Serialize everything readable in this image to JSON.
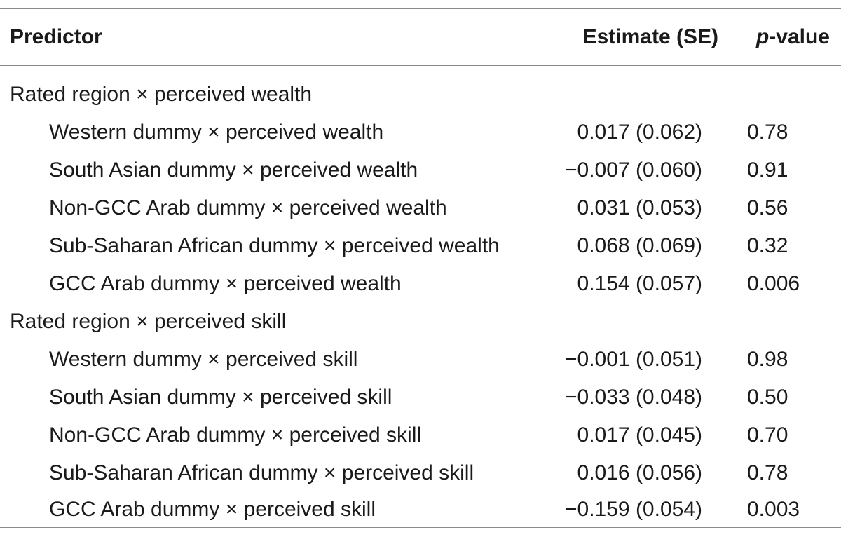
{
  "header": {
    "predictor": "Predictor",
    "estimate": "Estimate (SE)",
    "p_italic": "p",
    "p_rest": "-value"
  },
  "groups": [
    {
      "label": "Rated region × perceived wealth",
      "rows": [
        {
          "predictor": "Western dummy × perceived wealth",
          "estimate": "0.017 (0.062)",
          "p": "0.78"
        },
        {
          "predictor": "South Asian dummy × perceived wealth",
          "estimate": "−0.007 (0.060)",
          "p": "0.91"
        },
        {
          "predictor": "Non-GCC Arab dummy × perceived wealth",
          "estimate": "0.031 (0.053)",
          "p": "0.56"
        },
        {
          "predictor": "Sub-Saharan African dummy × perceived wealth",
          "estimate": "0.068 (0.069)",
          "p": "0.32"
        },
        {
          "predictor": "GCC Arab dummy × perceived wealth",
          "estimate": "0.154 (0.057)",
          "p": "0.006"
        }
      ]
    },
    {
      "label": "Rated region × perceived skill",
      "rows": [
        {
          "predictor": "Western dummy × perceived skill",
          "estimate": "−0.001 (0.051)",
          "p": "0.98"
        },
        {
          "predictor": "South Asian dummy × perceived skill",
          "estimate": "−0.033 (0.048)",
          "p": "0.50"
        },
        {
          "predictor": "Non-GCC Arab dummy × perceived skill",
          "estimate": "0.017 (0.045)",
          "p": "0.70"
        },
        {
          "predictor": "Sub-Saharan African dummy × perceived skill",
          "estimate": "0.016 (0.056)",
          "p": "0.78"
        },
        {
          "predictor": "GCC Arab dummy × perceived skill",
          "estimate": "−0.159 (0.054)",
          "p": "0.003"
        }
      ]
    }
  ]
}
